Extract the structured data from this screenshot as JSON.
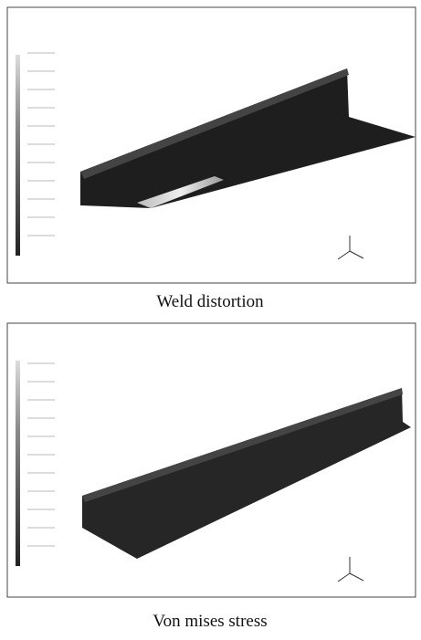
{
  "panels": [
    {
      "caption": "Weld distortion"
    },
    {
      "caption": "Von mises stress"
    }
  ]
}
